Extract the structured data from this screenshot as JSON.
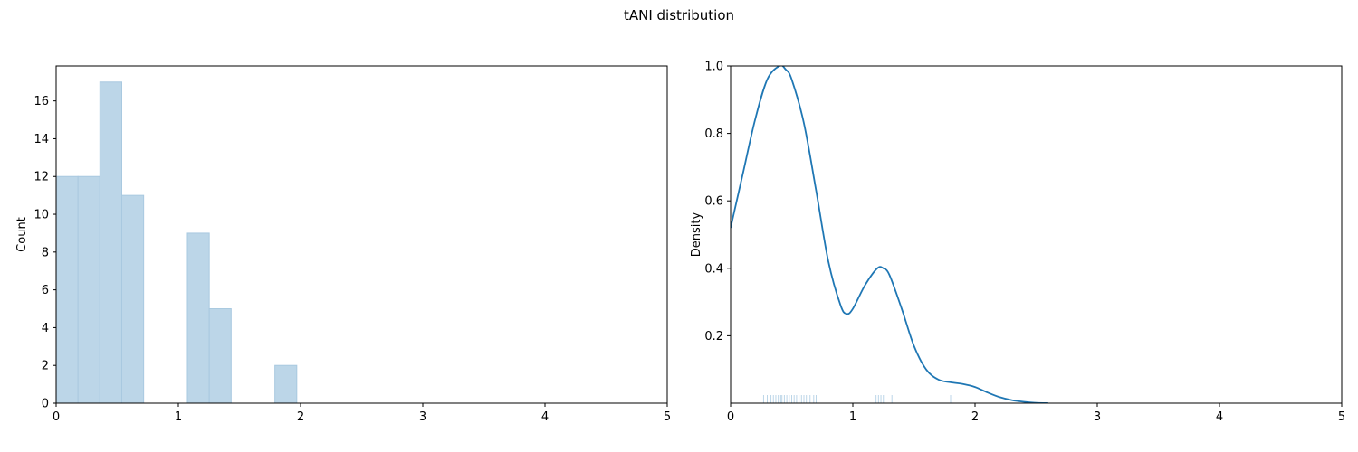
{
  "figure": {
    "title": "tANI distribution"
  },
  "chart_data": [
    {
      "type": "histogram",
      "title": "",
      "xlabel": "",
      "ylabel": "Count",
      "xlim": [
        0,
        5
      ],
      "ylim": [
        0,
        17.85
      ],
      "xticks": [
        0,
        1,
        2,
        3,
        4,
        5
      ],
      "yticks": [
        0,
        2,
        4,
        6,
        8,
        10,
        12,
        14,
        16
      ],
      "bin_width": 0.179,
      "bins": [
        {
          "x0": 0.0,
          "x1": 0.179,
          "count": 12
        },
        {
          "x0": 0.179,
          "x1": 0.358,
          "count": 12
        },
        {
          "x0": 0.358,
          "x1": 0.537,
          "count": 17
        },
        {
          "x0": 0.537,
          "x1": 0.716,
          "count": 11
        },
        {
          "x0": 0.716,
          "x1": 0.895,
          "count": 0
        },
        {
          "x0": 0.895,
          "x1": 1.074,
          "count": 0
        },
        {
          "x0": 1.074,
          "x1": 1.253,
          "count": 9
        },
        {
          "x0": 1.253,
          "x1": 1.432,
          "count": 5
        },
        {
          "x0": 1.432,
          "x1": 1.611,
          "count": 0
        },
        {
          "x0": 1.611,
          "x1": 1.79,
          "count": 0
        },
        {
          "x0": 1.79,
          "x1": 1.969,
          "count": 2
        }
      ],
      "fill_color": "#bcd6e8",
      "edge_color": "#a9c9e0",
      "grid": false
    },
    {
      "type": "line",
      "title": "",
      "xlabel": "",
      "ylabel": "Density",
      "xlim": [
        0,
        5
      ],
      "ylim": [
        0,
        1.0
      ],
      "xticks": [
        0,
        1,
        2,
        3,
        4,
        5
      ],
      "yticks": [
        0.2,
        0.4,
        0.6,
        0.8,
        1.0
      ],
      "series": [
        {
          "x": [
            0,
            0.1,
            0.2,
            0.3,
            0.4,
            0.45,
            0.5,
            0.6,
            0.7,
            0.8,
            0.9,
            0.95,
            1.0,
            1.1,
            1.2,
            1.25,
            1.3,
            1.4,
            1.5,
            1.6,
            1.7,
            1.8,
            1.9,
            2.0,
            2.1,
            2.2,
            2.3,
            2.4,
            2.5,
            2.6
          ],
          "y": [
            0.52,
            0.68,
            0.84,
            0.96,
            1.0,
            0.99,
            0.96,
            0.83,
            0.63,
            0.42,
            0.29,
            0.265,
            0.28,
            0.35,
            0.4,
            0.4,
            0.38,
            0.28,
            0.17,
            0.1,
            0.07,
            0.062,
            0.057,
            0.048,
            0.032,
            0.018,
            0.009,
            0.004,
            0.001,
            0.0
          ],
          "color": "#1f77b4"
        }
      ],
      "rug": {
        "x": [
          0.27,
          0.3,
          0.33,
          0.35,
          0.37,
          0.39,
          0.41,
          0.42,
          0.44,
          0.46,
          0.48,
          0.5,
          0.52,
          0.54,
          0.56,
          0.58,
          0.6,
          0.62,
          0.65,
          0.68,
          0.7,
          1.19,
          1.21,
          1.23,
          1.25,
          1.32,
          1.8
        ],
        "color": "#bcd6e8"
      },
      "grid": false
    }
  ]
}
